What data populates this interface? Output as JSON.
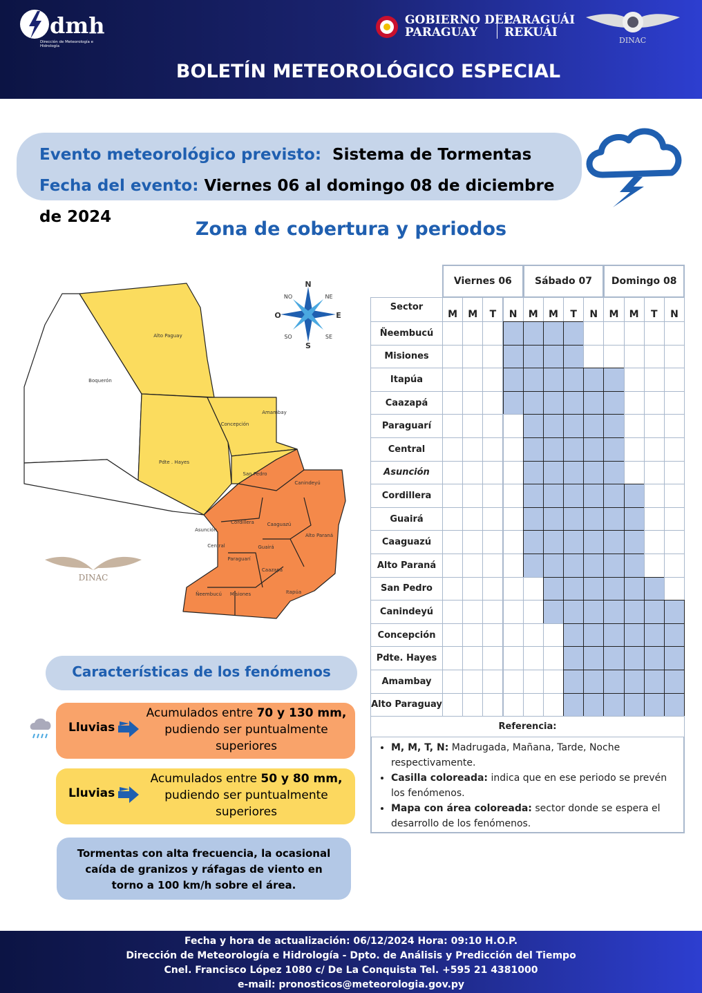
{
  "header": {
    "logo_text": "dmh",
    "logo_sub": "Dirección de Meteorología e Hidrología",
    "gov_line1": "GOBIERNO DEL",
    "gov_line2": "PARAGUAY",
    "gov_guarani1": "PARAGUÁI",
    "gov_guarani2": "REKUÁI",
    "dinac": "DINAC",
    "title": "BOLETÍN METEOROLÓGICO ESPECIAL"
  },
  "event": {
    "label1": "Evento meteorológico previsto:",
    "value1": "Sistema de Tormentas",
    "label2": "Fecha del evento:",
    "value2": "Viernes 06 al domingo 08 de diciembre de 2024"
  },
  "coverage_title": "Zona de cobertura y periodos",
  "map": {
    "regions": [
      "Alto Paguay",
      "Boquerón",
      "Concepción",
      "Amambay",
      "Pdte . Hayes",
      "San Pedro",
      "Canindeyú",
      "Asunción",
      "Cordillera",
      "Caaguazú",
      "Central",
      "Guairá",
      "Alto Paraná",
      "Paraguarí",
      "Caazapá",
      "Ñeembucú",
      "Misiones",
      "Itapúa"
    ],
    "compass": [
      "N",
      "NE",
      "E",
      "SE",
      "S",
      "SO",
      "O",
      "NO"
    ],
    "watermark": "DINAC"
  },
  "table": {
    "days": [
      "Viernes 06",
      "Sábado 07",
      "Domingo 08"
    ],
    "sector_header": "Sector",
    "periods": [
      "M",
      "M",
      "T",
      "N",
      "M",
      "M",
      "T",
      "N",
      "M",
      "M",
      "T",
      "N"
    ],
    "rows": [
      {
        "sector": "Ñeembucú",
        "colored": [
          false,
          false,
          false,
          true,
          true,
          true,
          true,
          false,
          false,
          false,
          false,
          false
        ]
      },
      {
        "sector": "Misiones",
        "colored": [
          false,
          false,
          false,
          true,
          true,
          true,
          true,
          false,
          false,
          false,
          false,
          false
        ]
      },
      {
        "sector": "Itapúa",
        "colored": [
          false,
          false,
          false,
          true,
          true,
          true,
          true,
          true,
          true,
          false,
          false,
          false
        ]
      },
      {
        "sector": "Caazapá",
        "colored": [
          false,
          false,
          false,
          true,
          true,
          true,
          true,
          true,
          true,
          false,
          false,
          false
        ]
      },
      {
        "sector": "Paraguarí",
        "colored": [
          false,
          false,
          false,
          false,
          true,
          true,
          true,
          true,
          true,
          false,
          false,
          false
        ]
      },
      {
        "sector": "Central",
        "colored": [
          false,
          false,
          false,
          false,
          true,
          true,
          true,
          true,
          true,
          false,
          false,
          false
        ]
      },
      {
        "sector": "Asunción",
        "italic": true,
        "colored": [
          false,
          false,
          false,
          false,
          true,
          true,
          true,
          true,
          true,
          false,
          false,
          false
        ]
      },
      {
        "sector": "Cordillera",
        "colored": [
          false,
          false,
          false,
          false,
          true,
          true,
          true,
          true,
          true,
          true,
          false,
          false
        ]
      },
      {
        "sector": "Guairá",
        "colored": [
          false,
          false,
          false,
          false,
          true,
          true,
          true,
          true,
          true,
          true,
          false,
          false
        ]
      },
      {
        "sector": "Caaguazú",
        "colored": [
          false,
          false,
          false,
          false,
          true,
          true,
          true,
          true,
          true,
          true,
          false,
          false
        ]
      },
      {
        "sector": "Alto Paraná",
        "colored": [
          false,
          false,
          false,
          false,
          true,
          true,
          true,
          true,
          true,
          true,
          false,
          false
        ]
      },
      {
        "sector": "San Pedro",
        "colored": [
          false,
          false,
          false,
          false,
          false,
          true,
          true,
          true,
          true,
          true,
          true,
          false
        ]
      },
      {
        "sector": "Canindeyú",
        "colored": [
          false,
          false,
          false,
          false,
          false,
          true,
          true,
          true,
          true,
          true,
          true,
          true
        ]
      },
      {
        "sector": "Concepción",
        "colored": [
          false,
          false,
          false,
          false,
          false,
          false,
          true,
          true,
          true,
          true,
          true,
          true
        ]
      },
      {
        "sector": "Pdte. Hayes",
        "colored": [
          false,
          false,
          false,
          false,
          false,
          false,
          true,
          true,
          true,
          true,
          true,
          true
        ]
      },
      {
        "sector": "Amambay",
        "colored": [
          false,
          false,
          false,
          false,
          false,
          false,
          true,
          true,
          true,
          true,
          true,
          true
        ]
      },
      {
        "sector": "Alto Paraguay",
        "colored": [
          false,
          false,
          false,
          false,
          false,
          false,
          true,
          true,
          true,
          true,
          true,
          true
        ]
      }
    ],
    "reference_title": "Referencia:",
    "reference_items": [
      {
        "bold": "M, M, T, N:",
        "text": "Madrugada, Mañana, Tarde, Noche respectivamente."
      },
      {
        "bold": "Casilla coloreada:",
        "text": "indica que en ese periodo se prevén los fenómenos."
      },
      {
        "bold": "Mapa con área coloreada:",
        "text": "sector donde se espera el desarrollo de los fenómenos."
      }
    ]
  },
  "characteristics": {
    "title": "Características de los fenómenos",
    "items": [
      {
        "label": "Lluvias",
        "pre": "Acumulados entre ",
        "bold": "70 y 130 mm,",
        "post": "pudiendo ser puntualmente superiores"
      },
      {
        "label": "Lluvias",
        "pre": "Acumulados entre ",
        "bold": "50 y 80 mm,",
        "post": "pudiendo ser puntualmente superiores"
      }
    ],
    "note": "Tormentas con alta frecuencia, la ocasional caída de granizos y ráfagas de viento en torno a 100 km/h sobre el área."
  },
  "footer": {
    "lines": [
      "Fecha y hora de actualización: 06/12/2024 Hora: 09:10 H.O.P.",
      "Dirección de Meteorología e Hidrología - Dpto. de Análisis y Predicción del Tiempo",
      "Cnel. Francisco López 1080 c/ De La Conquista Tel. +595 21 4381000",
      "e-mail: pronosticos@meteorologia.gov.py"
    ]
  }
}
